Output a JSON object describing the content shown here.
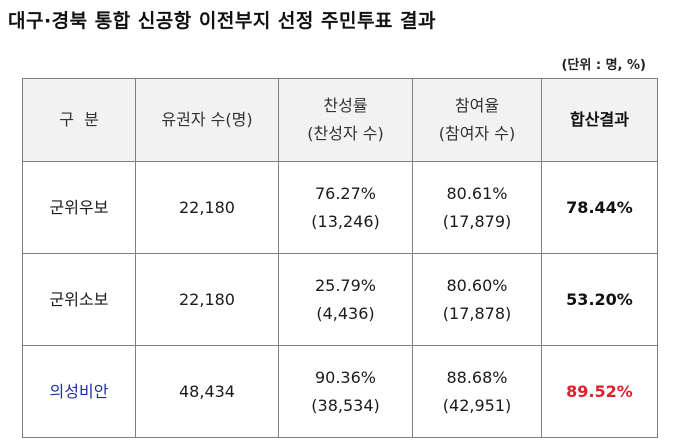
{
  "title": "대구·경북 통합 신공항 이전부지 선정 주민투표 결과",
  "unit": "(단위 : 명, %)",
  "headers": {
    "division": "구  분",
    "voters": "유권자 수(명)",
    "approval_line1": "찬성률",
    "approval_line2": "(찬성자 수)",
    "turnout_line1": "참여율",
    "turnout_line2": "(참여자 수)",
    "result": "합산결과"
  },
  "rows": [
    {
      "name": "군위우보",
      "voters": "22,180",
      "approval_rate": "76.27%",
      "approval_count": "(13,246)",
      "turnout_rate": "80.61%",
      "turnout_count": "(17,879)",
      "result": "78.44%"
    },
    {
      "name": "군위소보",
      "voters": "22,180",
      "approval_rate": "25.79%",
      "approval_count": "(4,436)",
      "turnout_rate": "80.60%",
      "turnout_count": "(17,878)",
      "result": "53.20%"
    },
    {
      "name": "의성비안",
      "voters": "48,434",
      "approval_rate": "90.36%",
      "approval_count": "(38,534)",
      "turnout_rate": "88.68%",
      "turnout_count": "(42,951)",
      "result": "89.52%"
    }
  ],
  "colors": {
    "highlight_name": "#1f2f9c",
    "highlight_result": "#e0202a",
    "header_bg": "#f2f2f2",
    "border": "#7f7f7f"
  }
}
